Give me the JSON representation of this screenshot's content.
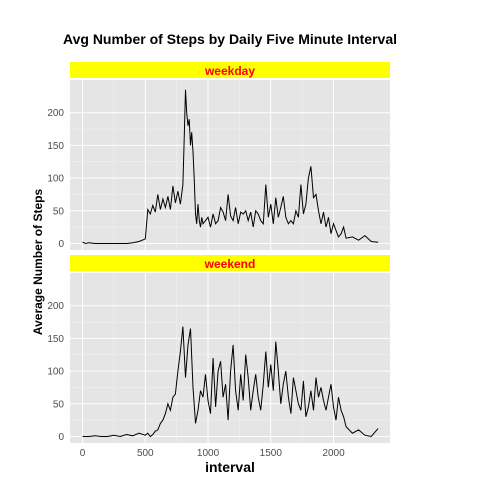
{
  "chart_data": {
    "type": "line",
    "title": "Avg Number of Steps by Daily Five Minute Interval",
    "xlabel": "interval",
    "ylabel": "Average Number of Steps",
    "xlim": [
      -100,
      2450
    ],
    "ylim": [
      -10,
      250
    ],
    "x_ticks": [
      0,
      500,
      1000,
      1500,
      2000
    ],
    "y_ticks": [
      0,
      50,
      100,
      150,
      200
    ],
    "grid": true,
    "colors": {
      "panel_bg": "#e5e5e5",
      "grid": "#ffffff",
      "strip_bg": "#ffff00",
      "strip_text": "#ff0000",
      "line": "#000000"
    },
    "panels": [
      {
        "label": "weekday",
        "x": [
          0,
          25,
          50,
          100,
          150,
          200,
          250,
          300,
          350,
          400,
          450,
          500,
          520,
          540,
          560,
          580,
          600,
          620,
          640,
          660,
          680,
          700,
          720,
          740,
          760,
          780,
          800,
          810,
          820,
          830,
          840,
          850,
          860,
          870,
          880,
          890,
          900,
          910,
          920,
          930,
          940,
          950,
          960,
          980,
          1000,
          1020,
          1040,
          1060,
          1080,
          1100,
          1120,
          1140,
          1160,
          1180,
          1200,
          1220,
          1240,
          1260,
          1280,
          1300,
          1320,
          1340,
          1360,
          1380,
          1400,
          1420,
          1440,
          1460,
          1480,
          1500,
          1520,
          1540,
          1560,
          1580,
          1600,
          1620,
          1640,
          1660,
          1680,
          1700,
          1720,
          1740,
          1760,
          1780,
          1800,
          1820,
          1840,
          1860,
          1880,
          1900,
          1920,
          1940,
          1960,
          1980,
          2000,
          2020,
          2040,
          2060,
          2080,
          2100,
          2150,
          2200,
          2250,
          2300,
          2355
        ],
        "y": [
          2,
          0,
          1,
          0,
          0,
          0,
          0,
          0,
          0,
          1,
          3,
          7,
          52,
          45,
          58,
          48,
          75,
          52,
          68,
          55,
          72,
          52,
          88,
          62,
          80,
          60,
          90,
          160,
          235,
          200,
          180,
          190,
          150,
          170,
          140,
          100,
          45,
          30,
          60,
          35,
          25,
          40,
          30,
          35,
          40,
          25,
          45,
          30,
          35,
          55,
          48,
          35,
          75,
          42,
          35,
          55,
          30,
          48,
          45,
          50,
          35,
          48,
          25,
          50,
          45,
          35,
          30,
          90,
          40,
          60,
          30,
          70,
          40,
          55,
          72,
          40,
          30,
          35,
          30,
          50,
          40,
          90,
          45,
          60,
          100,
          118,
          70,
          75,
          50,
          30,
          48,
          25,
          40,
          15,
          30,
          20,
          10,
          15,
          25,
          8,
          10,
          5,
          12,
          3,
          2
        ]
      },
      {
        "label": "weekend",
        "x": [
          0,
          50,
          100,
          150,
          200,
          250,
          300,
          350,
          400,
          450,
          500,
          520,
          540,
          560,
          580,
          600,
          620,
          640,
          660,
          680,
          700,
          720,
          740,
          760,
          780,
          800,
          820,
          840,
          860,
          880,
          900,
          920,
          940,
          960,
          980,
          1000,
          1020,
          1040,
          1060,
          1080,
          1100,
          1120,
          1140,
          1160,
          1180,
          1200,
          1220,
          1240,
          1260,
          1280,
          1300,
          1320,
          1340,
          1360,
          1380,
          1400,
          1420,
          1440,
          1460,
          1480,
          1500,
          1520,
          1540,
          1560,
          1580,
          1600,
          1620,
          1640,
          1660,
          1680,
          1700,
          1720,
          1740,
          1760,
          1780,
          1800,
          1820,
          1840,
          1860,
          1880,
          1900,
          1920,
          1940,
          1960,
          1980,
          2000,
          2020,
          2040,
          2060,
          2080,
          2100,
          2150,
          2200,
          2250,
          2300,
          2355
        ],
        "y": [
          0,
          0,
          1,
          0,
          0,
          2,
          0,
          3,
          1,
          5,
          2,
          5,
          0,
          3,
          8,
          10,
          20,
          25,
          35,
          50,
          40,
          60,
          65,
          100,
          130,
          168,
          90,
          140,
          165,
          75,
          20,
          40,
          70,
          60,
          95,
          55,
          35,
          120,
          45,
          100,
          115,
          60,
          80,
          25,
          100,
          140,
          70,
          40,
          95,
          55,
          125,
          90,
          40,
          70,
          95,
          60,
          40,
          80,
          130,
          75,
          110,
          70,
          145,
          100,
          50,
          80,
          100,
          60,
          35,
          90,
          70,
          50,
          40,
          85,
          30,
          45,
          70,
          40,
          90,
          60,
          75,
          55,
          40,
          60,
          80,
          45,
          25,
          60,
          40,
          30,
          15,
          5,
          10,
          2,
          0,
          12
        ]
      }
    ]
  }
}
